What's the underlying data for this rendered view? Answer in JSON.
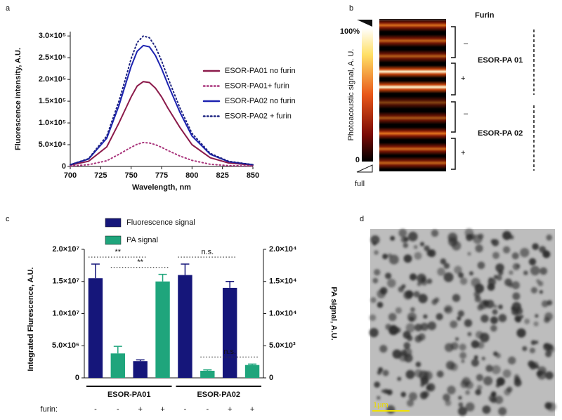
{
  "chart_data": [
    {
      "type": "line",
      "panel_label": "a",
      "xlabel": "Wavelength, nm",
      "ylabel": "Fluorescence intensity, A.U.",
      "x": [
        700,
        715,
        730,
        740,
        745,
        750,
        755,
        760,
        765,
        770,
        775,
        780,
        790,
        800,
        815,
        830,
        850
      ],
      "xlim": [
        700,
        850
      ],
      "xticks": [
        700,
        725,
        750,
        775,
        800,
        825,
        850
      ],
      "ylim": [
        0,
        310000
      ],
      "yticks": [
        0,
        {
          "value": 50000,
          "label": "5.0×10⁴"
        },
        {
          "value": 100000,
          "label": "1.0×10⁵"
        },
        {
          "value": 150000,
          "label": "1.5×10⁵"
        },
        {
          "value": 200000,
          "label": "2.0×10⁵"
        },
        {
          "value": 250000,
          "label": "2.5×10⁵"
        },
        {
          "value": 300000,
          "label": "3.0×10⁵"
        }
      ],
      "legend": "upper right",
      "series": [
        {
          "name": "ESOR-PA01 no furin",
          "color": "#8b1a4a",
          "line_style": "solid",
          "values": [
            3000,
            12000,
            45000,
            100000,
            130000,
            160000,
            185000,
            195000,
            193000,
            180000,
            160000,
            135000,
            90000,
            50000,
            20000,
            8000,
            3000
          ]
        },
        {
          "name": "ESOR-PA01+ furin",
          "color": "#a8327a",
          "line_style": "dotted",
          "values": [
            1000,
            4000,
            13000,
            28000,
            36000,
            44000,
            51000,
            55000,
            54000,
            50000,
            44000,
            37000,
            24000,
            14000,
            5000,
            2000,
            1000
          ]
        },
        {
          "name": "ESOR-PA02 no furin",
          "color": "#1c22b0",
          "line_style": "solid",
          "values": [
            4000,
            17000,
            65000,
            140000,
            185000,
            230000,
            265000,
            278000,
            275000,
            255000,
            225000,
            190000,
            125000,
            70000,
            28000,
            11000,
            4000
          ]
        },
        {
          "name": "ESOR-PA02 + furin",
          "color": "#1c2280",
          "line_style": "dotted",
          "values": [
            4000,
            18000,
            70000,
            150000,
            198000,
            248000,
            285000,
            300000,
            296000,
            275000,
            243000,
            205000,
            135000,
            76000,
            30000,
            12000,
            4000
          ]
        }
      ]
    },
    {
      "type": "bar",
      "panel_label": "c",
      "ylabel": "Integrated Flurescence, A.U.",
      "y2label": "PA signal, A.U.",
      "category_label": "furin:",
      "categories": [
        "-",
        "-",
        "+",
        "+",
        "-",
        "-",
        "+",
        "+"
      ],
      "groups": [
        "ESOR-PA01",
        "ESOR-PA02"
      ],
      "ylim": [
        0,
        20000000
      ],
      "yticks": [
        0,
        {
          "value": 5000000,
          "label": "5.0×10⁶"
        },
        {
          "value": 10000000,
          "label": "1.0×10⁷"
        },
        {
          "value": 15000000,
          "label": "1.5×10⁷"
        },
        {
          "value": 20000000,
          "label": "2.0×10⁷"
        }
      ],
      "y2lim": [
        0,
        20000
      ],
      "y2ticks": [
        0,
        {
          "value": 5000,
          "label": "5.0×10³"
        },
        {
          "value": 10000,
          "label": "1.0×10⁴"
        },
        {
          "value": 15000,
          "label": "1.5×10⁴"
        },
        {
          "value": 20000,
          "label": "2.0×10⁴"
        }
      ],
      "series": [
        {
          "name": "Fluorescence signal",
          "color": "#15167a",
          "values": [
            15500000,
            null,
            2600000,
            null,
            16000000,
            null,
            14000000,
            null
          ],
          "errors": [
            2200000,
            null,
            200000,
            null,
            1700000,
            null,
            1000000,
            null
          ]
        },
        {
          "name": "PA signal",
          "color": "#1fa57c",
          "axis": "y2",
          "values": [
            null,
            3800,
            null,
            15000,
            null,
            1100,
            null,
            2000
          ],
          "errors": [
            null,
            1100,
            null,
            1100,
            null,
            150,
            null,
            150
          ]
        }
      ],
      "annotations": [
        {
          "text": "**",
          "from": 0,
          "to": 2
        },
        {
          "text": "**",
          "from": 1,
          "to": 3
        },
        {
          "text": "n.s.",
          "from": 4,
          "to": 6
        },
        {
          "text": "n.s.",
          "from": 5,
          "to": 7
        }
      ]
    }
  ],
  "panel_b": {
    "label": "b",
    "title": "Furin",
    "scale_max": "100%",
    "scale_min": "0",
    "scale_note": "full",
    "axis_label": "Photoacoustic signal, A. U.",
    "row_labels": [
      "–",
      "+",
      "–",
      "+"
    ],
    "groups": [
      "ESOR-PA 01",
      "ESOR-PA 02"
    ]
  },
  "panel_d": {
    "label": "d",
    "scale_bar": "1μm"
  }
}
